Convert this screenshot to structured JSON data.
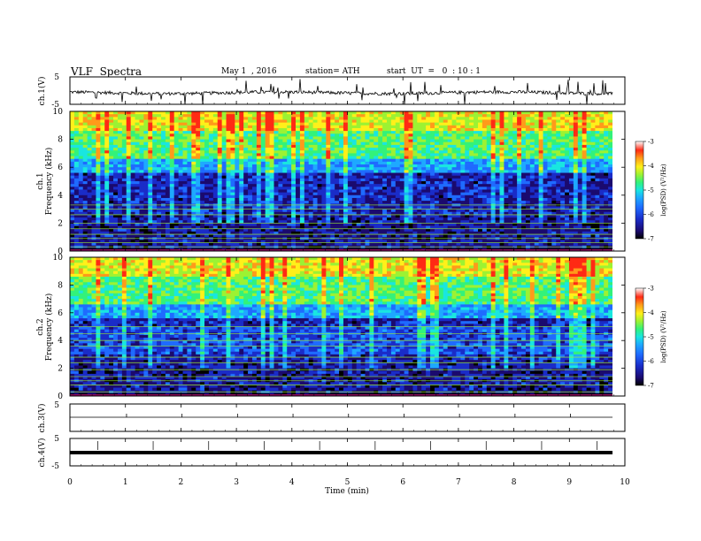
{
  "header": {
    "title": "VLF  Spectra",
    "date": "May 1  , 2016",
    "station": "station= ATH",
    "start": "start  UT  =   0  : 10 : 1"
  },
  "colors": {
    "scale": [
      "#000000",
      "#1b0a6e",
      "#1a2cc8",
      "#1f6bff",
      "#1ea9ff",
      "#19e6e0",
      "#33f27a",
      "#9cf233",
      "#fff01a",
      "#ff9a1a",
      "#ff2a14",
      "#ffd0d0",
      "#ffffff"
    ]
  },
  "chart_data": [
    {
      "type": "line",
      "panel": "ch1",
      "ylabel": "ch.1(V)",
      "yticks": [
        "5",
        "-5"
      ],
      "ylim": [
        -5,
        5
      ],
      "xlim": [
        0,
        10
      ],
      "description_series": "noisy waveform around -0.8 V with spikes",
      "baseline": -0.8
    },
    {
      "type": "heatmap",
      "panel": "ch1-spectrogram",
      "ylabel": "Frequency  (kHz)",
      "ylabel2": "ch.1",
      "yticks": [
        "0",
        "2",
        "4",
        "6",
        "8",
        "10"
      ],
      "ylim": [
        0,
        10
      ],
      "xlim": [
        0,
        10
      ],
      "colorbar": {
        "label": "log(PSD) (V²/Hz)",
        "ticks": [
          "-3",
          "-4",
          "-5",
          "-6",
          "-7"
        ],
        "range": [
          -7,
          -3
        ]
      }
    },
    {
      "type": "heatmap",
      "panel": "ch2-spectrogram",
      "ylabel": "Frequency  (kHz)",
      "ylabel2": "ch.2",
      "yticks": [
        "0",
        "2",
        "4",
        "6",
        "8",
        "10"
      ],
      "ylim": [
        0,
        10
      ],
      "xlim": [
        0,
        10
      ],
      "colorbar": {
        "label": "log(PSD) (V²/Hz)",
        "ticks": [
          "-3",
          "-4",
          "-5",
          "-6",
          "-7"
        ],
        "range": [
          -7,
          -3
        ]
      }
    },
    {
      "type": "line",
      "panel": "ch3",
      "ylabel": "ch.3(V)",
      "yticks": [
        "5"
      ],
      "ylim": [
        -5,
        5
      ],
      "xlim": [
        0,
        10
      ],
      "baseline": 0
    },
    {
      "type": "line",
      "panel": "ch4",
      "ylabel": "ch.4(V)",
      "yticks": [
        "5",
        "-5"
      ],
      "ylim": [
        -5,
        5
      ],
      "xlim": [
        0,
        10
      ],
      "baseline": 0
    },
    {
      "type": "axis",
      "xlabel": "Time  (min)",
      "xticks": [
        "0",
        "1",
        "2",
        "3",
        "4",
        "5",
        "6",
        "7",
        "8",
        "9",
        "10"
      ],
      "xlim": [
        0,
        10
      ]
    }
  ]
}
